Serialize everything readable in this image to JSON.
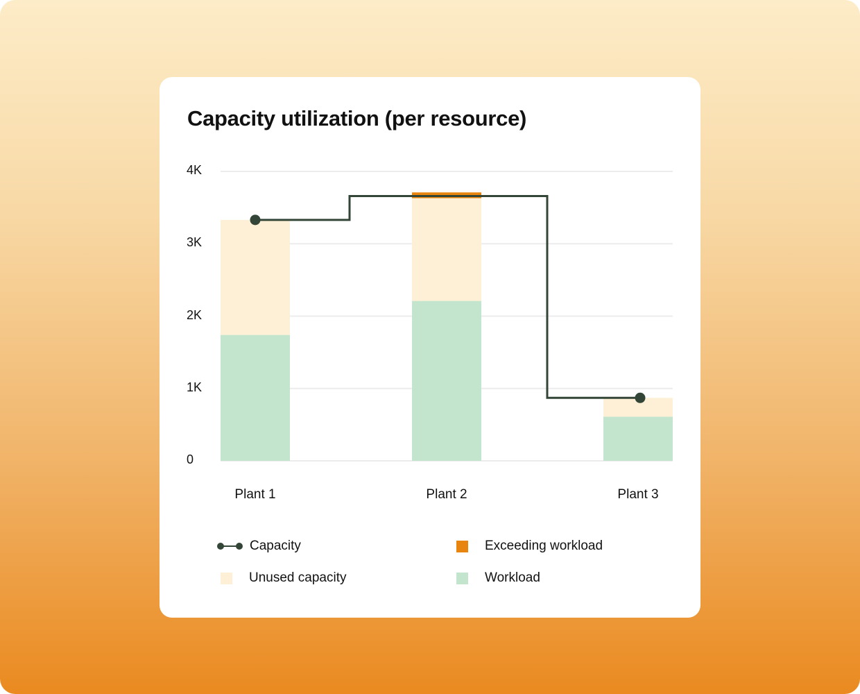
{
  "card": {
    "title": "Capacity utilization (per resource)"
  },
  "colors": {
    "capacity_line": "#334536",
    "unused_capacity": "#fdf0d6",
    "exceeding_workload": "#e8850f",
    "workload": "#c4e5cd",
    "gridline": "#ececec",
    "background_top": "#fdecc8",
    "background_bottom": "#ea8a20"
  },
  "axis": {
    "y_ticks": [
      "0",
      "1K",
      "2K",
      "3K",
      "4K"
    ],
    "x_ticks": [
      "Plant 1",
      "Plant 2",
      "Plant 3"
    ]
  },
  "legend": {
    "items": [
      {
        "label": "Capacity",
        "kind": "line-marker"
      },
      {
        "label": "Exceeding workload",
        "kind": "swatch"
      },
      {
        "label": "Unused capacity",
        "kind": "swatch"
      },
      {
        "label": "Workload",
        "kind": "swatch"
      }
    ]
  },
  "chart_data": {
    "type": "bar",
    "stacked": true,
    "title": "Capacity utilization (per resource)",
    "xlabel": "",
    "ylabel": "",
    "ylim": [
      0,
      4000
    ],
    "y_ticks": [
      0,
      1000,
      2000,
      3000,
      4000
    ],
    "y_tick_labels": [
      "0",
      "1K",
      "2K",
      "3K",
      "4K"
    ],
    "grid": true,
    "legend_position": "bottom",
    "categories": [
      "Plant 1",
      "Plant 2",
      "Plant 3"
    ],
    "series": [
      {
        "name": "Workload",
        "type": "bar",
        "values": [
          1740,
          2210,
          610
        ]
      },
      {
        "name": "Unused capacity",
        "type": "bar",
        "values": [
          1590,
          1420,
          260
        ]
      },
      {
        "name": "Exceeding workload",
        "type": "bar",
        "values": [
          0,
          80,
          0
        ]
      },
      {
        "name": "Capacity",
        "type": "step-line",
        "values": [
          3330,
          3660,
          870
        ]
      }
    ]
  }
}
